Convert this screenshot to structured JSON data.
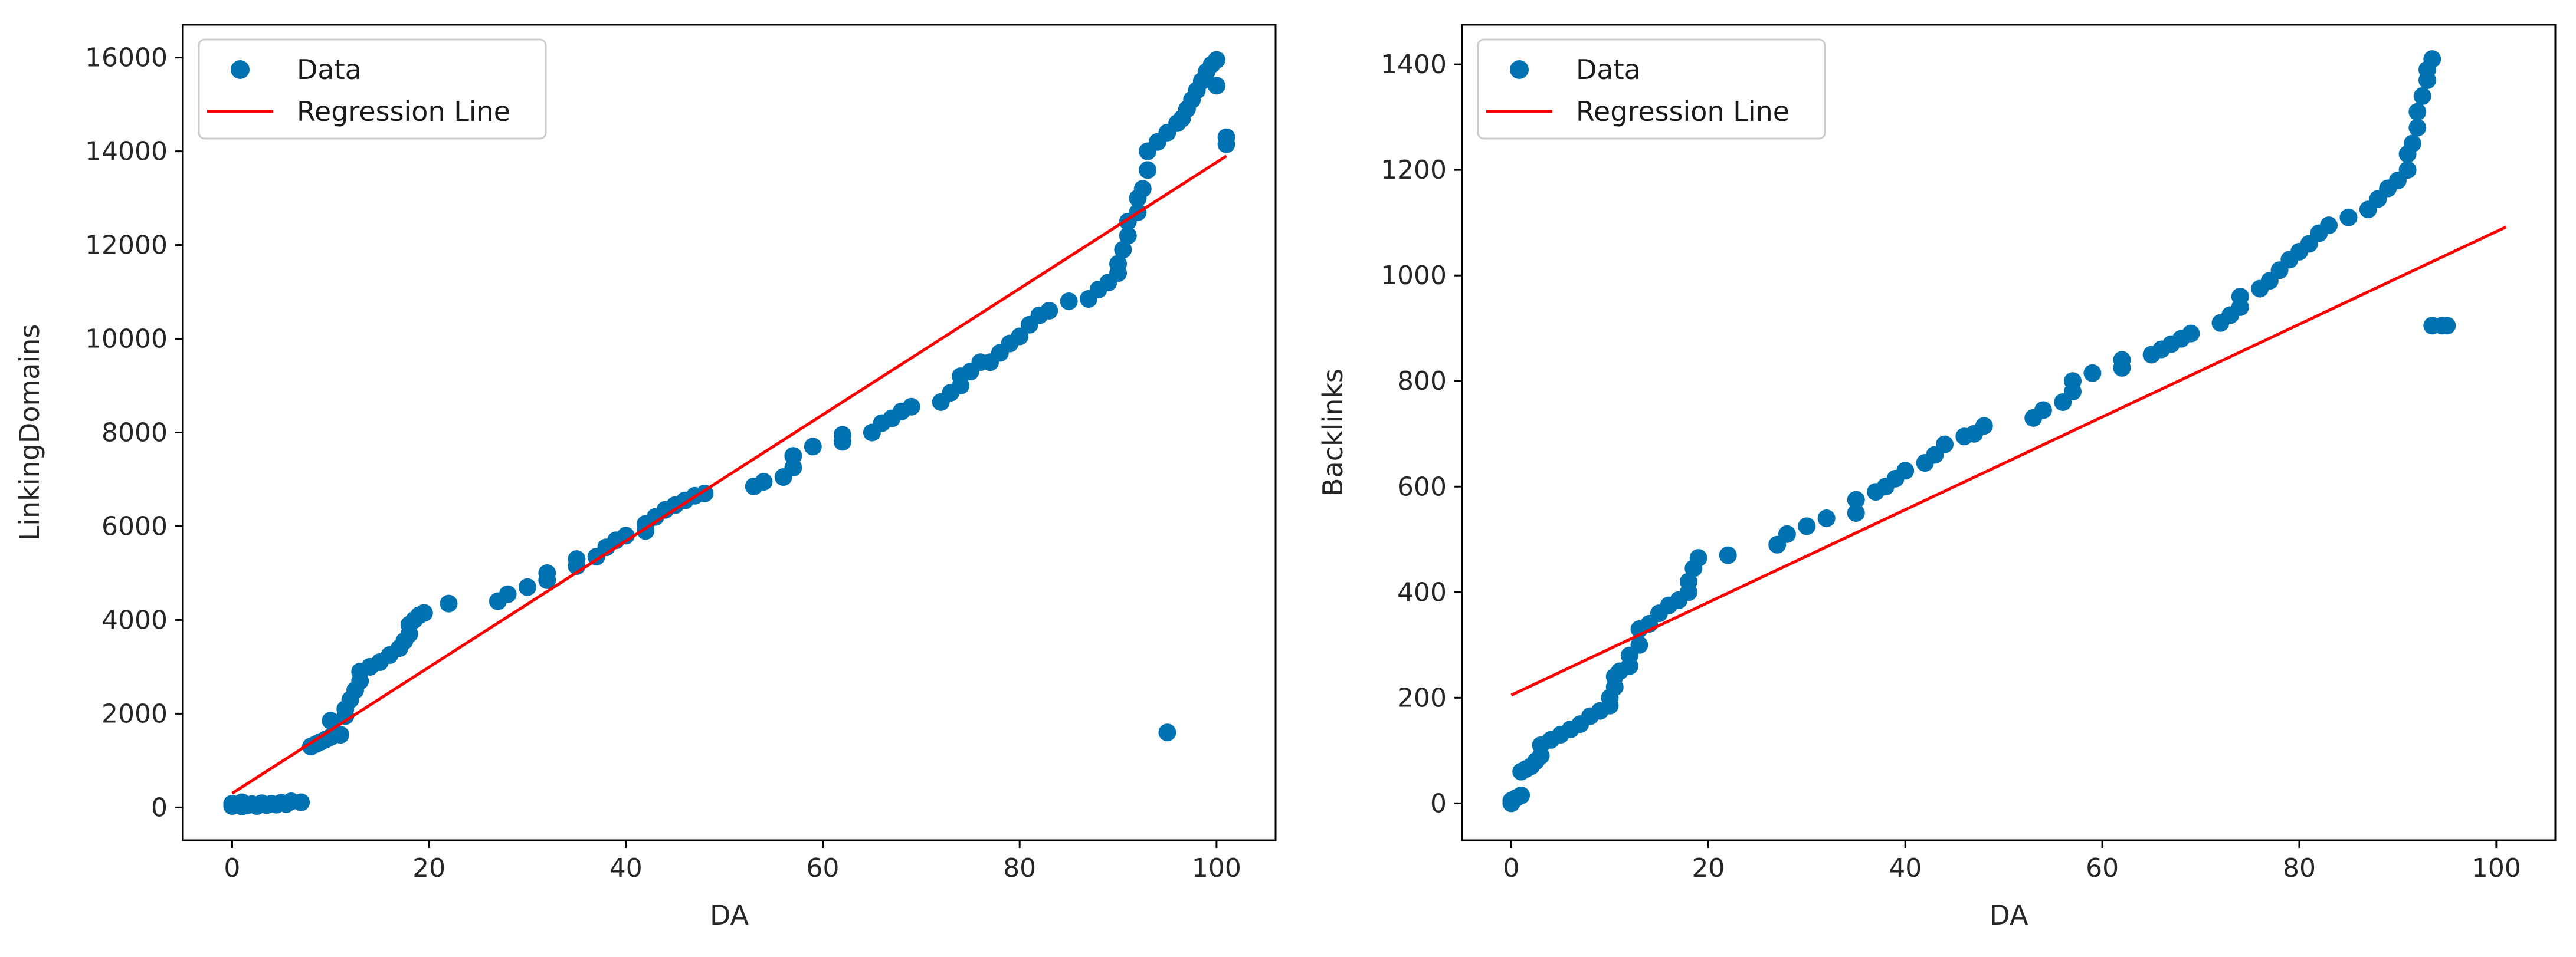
{
  "chart_data": [
    {
      "type": "scatter",
      "xlabel": "DA",
      "ylabel": "LinkingDomains",
      "xlim": [
        -5,
        106
      ],
      "ylim": [
        -700,
        16700
      ],
      "xticks": [
        0,
        20,
        40,
        60,
        80,
        100
      ],
      "yticks": [
        0,
        2000,
        4000,
        6000,
        8000,
        10000,
        12000,
        14000,
        16000
      ],
      "legend": {
        "placement": "top-left",
        "entries": [
          "Data",
          "Regression Line"
        ]
      },
      "colors": {
        "data": "#0072b2",
        "regression": "#ff0000"
      },
      "series": [
        {
          "name": "Data",
          "points": [
            [
              0,
              30
            ],
            [
              0,
              80
            ],
            [
              0.5,
              60
            ],
            [
              1,
              20
            ],
            [
              1,
              110
            ],
            [
              1.5,
              40
            ],
            [
              2,
              70
            ],
            [
              2.5,
              30
            ],
            [
              3,
              90
            ],
            [
              3.5,
              50
            ],
            [
              4,
              80
            ],
            [
              4.5,
              60
            ],
            [
              5,
              100
            ],
            [
              5.5,
              70
            ],
            [
              6,
              130
            ],
            [
              7,
              110
            ],
            [
              8,
              1300
            ],
            [
              8.5,
              1350
            ],
            [
              9,
              1400
            ],
            [
              9.5,
              1450
            ],
            [
              10,
              1500
            ],
            [
              10,
              1850
            ],
            [
              11,
              1550
            ],
            [
              11.5,
              1950
            ],
            [
              11.5,
              2100
            ],
            [
              12,
              2300
            ],
            [
              12.5,
              2500
            ],
            [
              13,
              2700
            ],
            [
              13,
              2900
            ],
            [
              14,
              3000
            ],
            [
              15,
              3100
            ],
            [
              16,
              3250
            ],
            [
              17,
              3400
            ],
            [
              17.5,
              3550
            ],
            [
              18,
              3700
            ],
            [
              18,
              3900
            ],
            [
              18.5,
              4000
            ],
            [
              19,
              4100
            ],
            [
              19.5,
              4150
            ],
            [
              22,
              4350
            ],
            [
              27,
              4400
            ],
            [
              28,
              4550
            ],
            [
              30,
              4700
            ],
            [
              32,
              4850
            ],
            [
              32,
              5000
            ],
            [
              35,
              5150
            ],
            [
              35,
              5300
            ],
            [
              37,
              5350
            ],
            [
              38,
              5550
            ],
            [
              39,
              5700
            ],
            [
              40,
              5800
            ],
            [
              42,
              5900
            ],
            [
              42,
              6050
            ],
            [
              43,
              6200
            ],
            [
              44,
              6350
            ],
            [
              45,
              6450
            ],
            [
              46,
              6550
            ],
            [
              47,
              6650
            ],
            [
              48,
              6700
            ],
            [
              53,
              6850
            ],
            [
              54,
              6950
            ],
            [
              56,
              7050
            ],
            [
              57,
              7250
            ],
            [
              57,
              7500
            ],
            [
              59,
              7700
            ],
            [
              62,
              7800
            ],
            [
              62,
              7950
            ],
            [
              65,
              8000
            ],
            [
              66,
              8200
            ],
            [
              67,
              8300
            ],
            [
              68,
              8450
            ],
            [
              69,
              8550
            ],
            [
              72,
              8650
            ],
            [
              73,
              8850
            ],
            [
              74,
              9000
            ],
            [
              74,
              9200
            ],
            [
              75,
              9300
            ],
            [
              76,
              9500
            ],
            [
              77,
              9500
            ],
            [
              78,
              9700
            ],
            [
              79,
              9900
            ],
            [
              80,
              10050
            ],
            [
              81,
              10300
            ],
            [
              82,
              10500
            ],
            [
              83,
              10600
            ],
            [
              85,
              10800
            ],
            [
              87,
              10850
            ],
            [
              88,
              11050
            ],
            [
              89,
              11200
            ],
            [
              90,
              11400
            ],
            [
              90,
              11600
            ],
            [
              90.5,
              11900
            ],
            [
              91,
              12200
            ],
            [
              91,
              12500
            ],
            [
              92,
              12700
            ],
            [
              92,
              13000
            ],
            [
              92.5,
              13200
            ],
            [
              93,
              13600
            ],
            [
              93,
              14000
            ],
            [
              94,
              14200
            ],
            [
              95,
              14400
            ],
            [
              96,
              14600
            ],
            [
              96.5,
              14700
            ],
            [
              97,
              14900
            ],
            [
              97.5,
              15100
            ],
            [
              98,
              15300
            ],
            [
              98.5,
              15500
            ],
            [
              99,
              15700
            ],
            [
              99.5,
              15850
            ],
            [
              100,
              15950
            ],
            [
              100,
              15400
            ],
            [
              101,
              14150
            ],
            [
              101,
              14300
            ],
            [
              95,
              1600
            ]
          ]
        },
        {
          "name": "Regression Line",
          "line": [
            [
              0,
              300
            ],
            [
              101,
              13900
            ]
          ]
        }
      ]
    },
    {
      "type": "scatter",
      "xlabel": "DA",
      "ylabel": "Backlinks",
      "xlim": [
        -5,
        106
      ],
      "ylim": [
        -70,
        1475
      ],
      "xticks": [
        0,
        20,
        40,
        60,
        80,
        100
      ],
      "yticks": [
        0,
        200,
        400,
        600,
        800,
        1000,
        1200,
        1400
      ],
      "legend": {
        "placement": "top-left",
        "entries": [
          "Data",
          "Regression Line"
        ]
      },
      "colors": {
        "data": "#0072b2",
        "regression": "#ff0000"
      },
      "series": [
        {
          "name": "Data",
          "points": [
            [
              0,
              0
            ],
            [
              0,
              5
            ],
            [
              0.5,
              10
            ],
            [
              1,
              15
            ],
            [
              1,
              60
            ],
            [
              1.5,
              65
            ],
            [
              2,
              70
            ],
            [
              2.5,
              80
            ],
            [
              3,
              90
            ],
            [
              3,
              110
            ],
            [
              4,
              120
            ],
            [
              5,
              130
            ],
            [
              6,
              140
            ],
            [
              7,
              150
            ],
            [
              8,
              165
            ],
            [
              9,
              175
            ],
            [
              10,
              185
            ],
            [
              10,
              200
            ],
            [
              10.5,
              220
            ],
            [
              10.5,
              240
            ],
            [
              11,
              250
            ],
            [
              12,
              260
            ],
            [
              12,
              280
            ],
            [
              13,
              300
            ],
            [
              13,
              330
            ],
            [
              14,
              340
            ],
            [
              15,
              360
            ],
            [
              16,
              375
            ],
            [
              17,
              385
            ],
            [
              18,
              400
            ],
            [
              18,
              420
            ],
            [
              18.5,
              445
            ],
            [
              19,
              465
            ],
            [
              22,
              470
            ],
            [
              27,
              490
            ],
            [
              28,
              510
            ],
            [
              30,
              525
            ],
            [
              32,
              540
            ],
            [
              35,
              550
            ],
            [
              35,
              575
            ],
            [
              37,
              590
            ],
            [
              38,
              600
            ],
            [
              39,
              615
            ],
            [
              40,
              630
            ],
            [
              42,
              645
            ],
            [
              43,
              660
            ],
            [
              44,
              680
            ],
            [
              46,
              695
            ],
            [
              47,
              700
            ],
            [
              48,
              715
            ],
            [
              53,
              730
            ],
            [
              54,
              745
            ],
            [
              56,
              760
            ],
            [
              57,
              780
            ],
            [
              57,
              800
            ],
            [
              59,
              815
            ],
            [
              62,
              825
            ],
            [
              62,
              840
            ],
            [
              65,
              850
            ],
            [
              66,
              860
            ],
            [
              67,
              870
            ],
            [
              68,
              880
            ],
            [
              69,
              890
            ],
            [
              72,
              910
            ],
            [
              73,
              925
            ],
            [
              74,
              940
            ],
            [
              74,
              960
            ],
            [
              76,
              975
            ],
            [
              77,
              990
            ],
            [
              78,
              1010
            ],
            [
              79,
              1030
            ],
            [
              80,
              1045
            ],
            [
              81,
              1060
            ],
            [
              82,
              1080
            ],
            [
              83,
              1095
            ],
            [
              85,
              1110
            ],
            [
              87,
              1125
            ],
            [
              88,
              1145
            ],
            [
              89,
              1165
            ],
            [
              90,
              1180
            ],
            [
              91,
              1200
            ],
            [
              91,
              1230
            ],
            [
              91.5,
              1250
            ],
            [
              92,
              1280
            ],
            [
              92,
              1310
            ],
            [
              92.5,
              1340
            ],
            [
              93,
              1370
            ],
            [
              93,
              1390
            ],
            [
              93.5,
              1410
            ],
            [
              93.5,
              905
            ],
            [
              94.5,
              905
            ],
            [
              95,
              905
            ]
          ]
        },
        {
          "name": "Regression Line",
          "line": [
            [
              0,
              205
            ],
            [
              101,
              1092
            ]
          ]
        }
      ]
    }
  ]
}
